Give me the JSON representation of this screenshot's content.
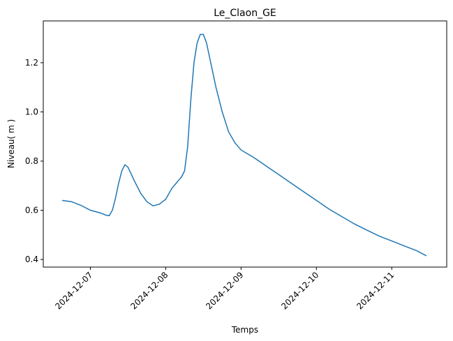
{
  "chart_data": {
    "type": "line",
    "title": "Le_Claon_GE",
    "x_label": "Temps",
    "y_label": "Niveau( m )",
    "x": [
      "2024-12-06T15:00",
      "2024-12-06T18:00",
      "2024-12-06T21:00",
      "2024-12-07T00:00",
      "2024-12-07T03:00",
      "2024-12-07T05:00",
      "2024-12-07T06:00",
      "2024-12-07T07:00",
      "2024-12-07T08:00",
      "2024-12-07T09:00",
      "2024-12-07T10:00",
      "2024-12-07T11:00",
      "2024-12-07T12:00",
      "2024-12-07T14:00",
      "2024-12-07T16:00",
      "2024-12-07T18:00",
      "2024-12-07T20:00",
      "2024-12-07T22:00",
      "2024-12-08T00:00",
      "2024-12-08T02:00",
      "2024-12-08T04:00",
      "2024-12-08T05:00",
      "2024-12-08T06:00",
      "2024-12-08T07:00",
      "2024-12-08T08:00",
      "2024-12-08T09:00",
      "2024-12-08T10:00",
      "2024-12-08T11:00",
      "2024-12-08T12:00",
      "2024-12-08T13:00",
      "2024-12-08T14:00",
      "2024-12-08T16:00",
      "2024-12-08T18:00",
      "2024-12-08T20:00",
      "2024-12-08T22:00",
      "2024-12-09T00:00",
      "2024-12-09T04:00",
      "2024-12-09T08:00",
      "2024-12-09T12:00",
      "2024-12-09T16:00",
      "2024-12-09T20:00",
      "2024-12-10T00:00",
      "2024-12-10T04:00",
      "2024-12-10T08:00",
      "2024-12-10T12:00",
      "2024-12-10T16:00",
      "2024-12-10T20:00",
      "2024-12-11T00:00",
      "2024-12-11T04:00",
      "2024-12-11T08:00",
      "2024-12-11T11:00"
    ],
    "series": [
      {
        "name": "Niveau",
        "color": "#1f77b4",
        "values": [
          0.64,
          0.635,
          0.62,
          0.6,
          0.59,
          0.58,
          0.578,
          0.6,
          0.65,
          0.71,
          0.76,
          0.785,
          0.775,
          0.72,
          0.67,
          0.635,
          0.618,
          0.625,
          0.645,
          0.69,
          0.72,
          0.735,
          0.76,
          0.86,
          1.05,
          1.2,
          1.28,
          1.315,
          1.315,
          1.28,
          1.22,
          1.1,
          1.0,
          0.92,
          0.875,
          0.845,
          0.815,
          0.78,
          0.745,
          0.71,
          0.675,
          0.64,
          0.605,
          0.575,
          0.545,
          0.52,
          0.495,
          0.475,
          0.455,
          0.435,
          0.415
        ]
      }
    ],
    "xlim": [
      "2024-12-06T09:00",
      "2024-12-11T17:30"
    ],
    "xticks": [
      "2024-12-07",
      "2024-12-08",
      "2024-12-09",
      "2024-12-10",
      "2024-12-11"
    ],
    "ylim": [
      0.369,
      1.37
    ],
    "yticks": [
      0.4,
      0.6,
      0.8,
      {
        "value": 1,
        "label": "1.0"
      },
      1.2
    ]
  }
}
